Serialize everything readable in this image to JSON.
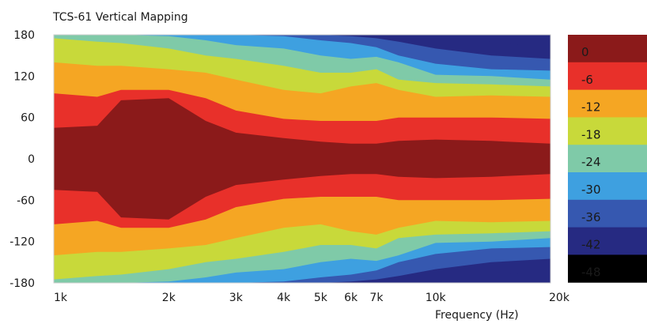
{
  "chart_data": {
    "type": "heatmap",
    "title": "TCS-61 Vertical Mapping",
    "xlabel": "Frequency  (Hz)",
    "ylabel": "",
    "x_scale": "log",
    "xlim": [
      1000,
      20000
    ],
    "ylim": [
      -180,
      180
    ],
    "x_ticks": [
      {
        "value": 1000,
        "label": "1k"
      },
      {
        "value": 2000,
        "label": "2k"
      },
      {
        "value": 3000,
        "label": "3k"
      },
      {
        "value": 4000,
        "label": "4k"
      },
      {
        "value": 5000,
        "label": "5k"
      },
      {
        "value": 6000,
        "label": "6k"
      },
      {
        "value": 7000,
        "label": "7k"
      },
      {
        "value": 10000,
        "label": "10k"
      },
      {
        "value": 20000,
        "label": "20k"
      }
    ],
    "y_ticks": [
      {
        "value": 180,
        "label": "180"
      },
      {
        "value": 120,
        "label": "120"
      },
      {
        "value": 60,
        "label": "60"
      },
      {
        "value": 0,
        "label": "0"
      },
      {
        "value": -60,
        "label": "-60"
      },
      {
        "value": -120,
        "label": "-120"
      },
      {
        "value": -180,
        "label": "-180"
      }
    ],
    "legend": {
      "placement": "right",
      "levels": [
        {
          "label": "0",
          "color": "#8b1a1a"
        },
        {
          "label": "-6",
          "color": "#e8302a"
        },
        {
          "label": "-12",
          "color": "#f5a623"
        },
        {
          "label": "-18",
          "color": "#c8d93a"
        },
        {
          "label": "-24",
          "color": "#7fcaa8"
        },
        {
          "label": "-30",
          "color": "#3ea0e0"
        },
        {
          "label": "-36",
          "color": "#3658b0"
        },
        {
          "label": "-42",
          "color": "#262a82"
        },
        {
          "label": "-48",
          "color": "#000000"
        }
      ]
    },
    "contours_deg": {
      "frequencies_hz": [
        1000,
        1300,
        1500,
        2000,
        2500,
        3000,
        4000,
        5000,
        6000,
        7000,
        8000,
        10000,
        14000,
        20000
      ],
      "level_0": [
        45,
        48,
        85,
        88,
        55,
        38,
        30,
        25,
        22,
        22,
        26,
        28,
        26,
        22
      ],
      "level_-6": [
        95,
        90,
        100,
        100,
        88,
        70,
        58,
        55,
        55,
        55,
        60,
        60,
        60,
        58
      ],
      "level_-12": [
        140,
        135,
        135,
        130,
        125,
        115,
        100,
        95,
        105,
        110,
        100,
        90,
        92,
        90
      ],
      "level_-18": [
        175,
        170,
        168,
        160,
        150,
        145,
        135,
        125,
        125,
        130,
        115,
        110,
        108,
        105
      ],
      "level_-24": [
        180,
        180,
        180,
        178,
        172,
        165,
        160,
        150,
        145,
        148,
        140,
        122,
        120,
        115
      ],
      "level_-30": [
        180,
        180,
        180,
        180,
        180,
        180,
        178,
        172,
        168,
        162,
        150,
        138,
        130,
        128
      ],
      "level_-36": [
        180,
        180,
        180,
        180,
        180,
        180,
        180,
        180,
        178,
        175,
        170,
        160,
        150,
        145
      ],
      "level_-42": [
        180,
        180,
        180,
        180,
        180,
        180,
        180,
        180,
        180,
        180,
        180,
        178,
        170,
        160
      ]
    }
  }
}
